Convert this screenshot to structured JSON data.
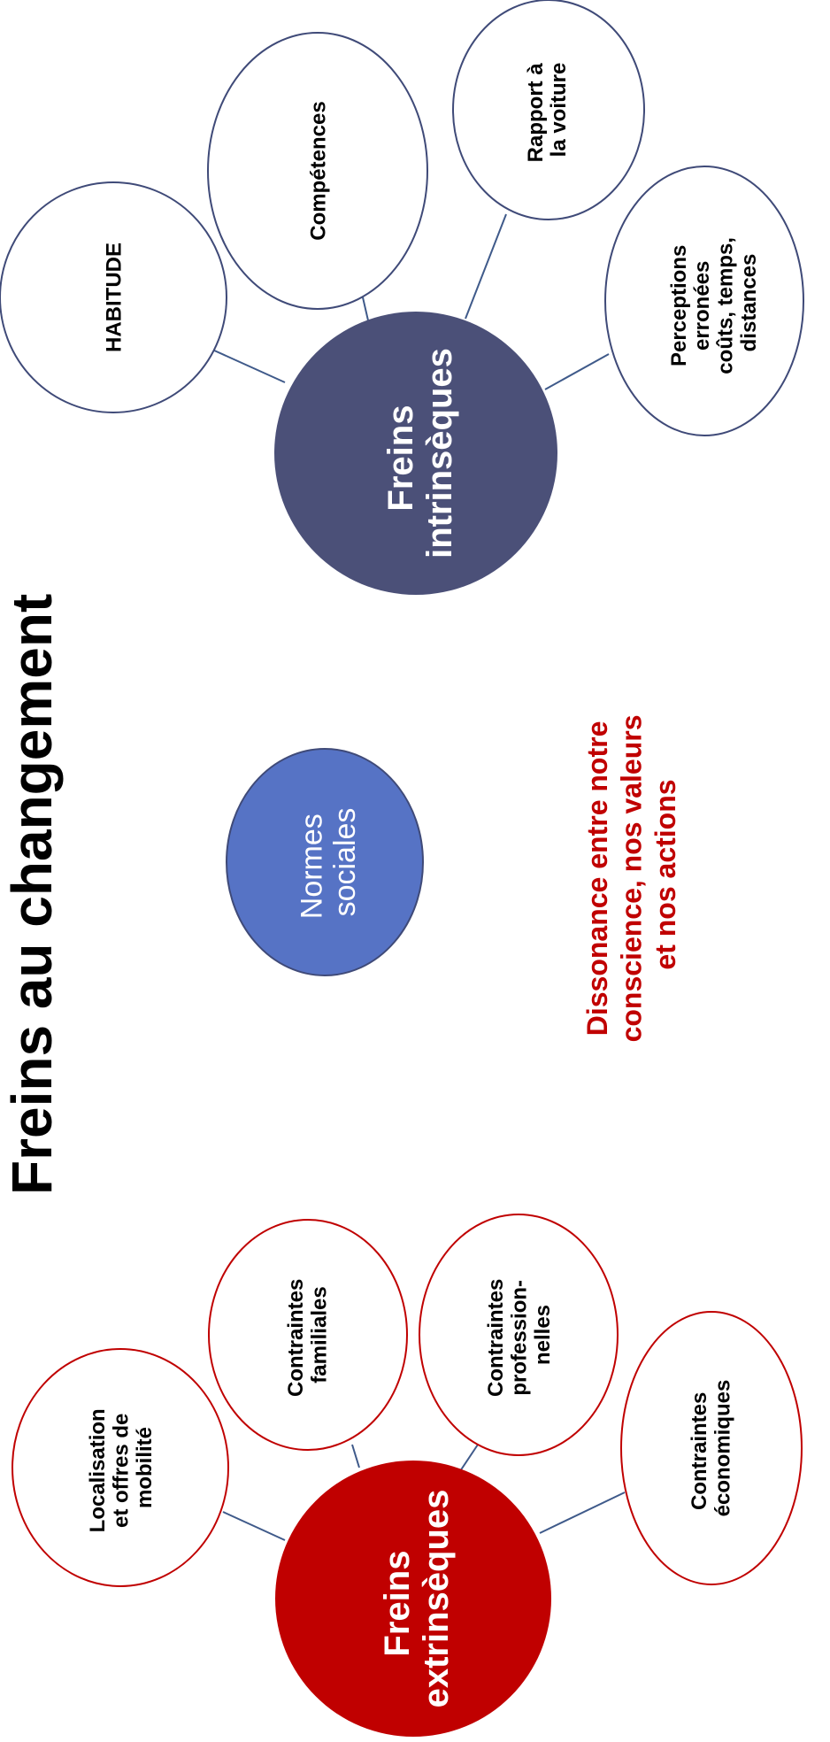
{
  "title": "Freins au changement",
  "colors": {
    "intrinsic_hub": "#4b5078",
    "extrinsic_hub": "#c00000",
    "norms_fill": "#5673c5",
    "intrinsic_outline": "#3f4a78",
    "extrinsic_outline": "#c00000",
    "connector": "#3f5a8a",
    "dissonance_text": "#c00000"
  },
  "intrinsic": {
    "hub_lines": [
      "Freins",
      "intrinsèques"
    ],
    "nodes": [
      {
        "lines": [
          "HABITUDE"
        ]
      },
      {
        "lines": [
          "Compétences"
        ]
      },
      {
        "lines": [
          "Rapport à",
          "la voiture"
        ]
      },
      {
        "lines": [
          "Perceptions",
          "erronées",
          "coûts, temps,",
          "distances"
        ]
      }
    ]
  },
  "norms": {
    "lines": [
      "Normes",
      "sociales"
    ]
  },
  "dissonance": {
    "lines": [
      "Dissonance entre notre",
      "conscience, nos valeurs",
      "et nos actions"
    ]
  },
  "extrinsic": {
    "hub_lines": [
      "Freins",
      "extrinsèques"
    ],
    "nodes": [
      {
        "lines": [
          "Localisation",
          "et offres de",
          "mobilité"
        ]
      },
      {
        "lines": [
          "Contraintes",
          "familiales"
        ]
      },
      {
        "lines": [
          "Contraintes",
          "profession-",
          "nelles"
        ]
      },
      {
        "lines": [
          "Contraintes",
          "économiques"
        ]
      }
    ]
  }
}
